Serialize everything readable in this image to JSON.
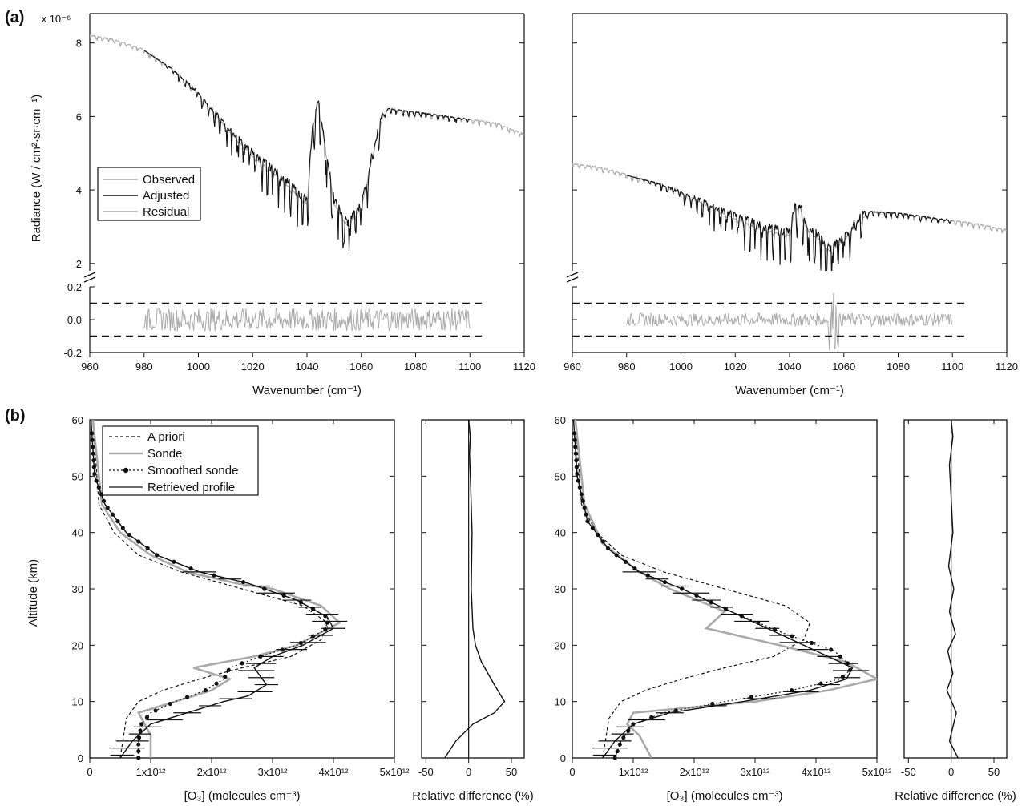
{
  "figure": {
    "panel_a_label": "(a)",
    "panel_b_label": "(b)"
  },
  "chart_data": [
    {
      "id": "a-left",
      "type": "line",
      "ylabel": "Radiance (W / cm²·sr·cm⁻¹)",
      "xlabel": "Wavenumber (cm⁻¹)",
      "y_multiplier": "x 10⁻⁶",
      "xlim": [
        960,
        1120
      ],
      "x_ticks": [
        "960",
        "980",
        "1000",
        "1020",
        "1040",
        "1060",
        "1080",
        "1100",
        "1120"
      ],
      "ylim_upper": [
        1.8,
        8.8
      ],
      "y_ticks_upper": [
        "2",
        "4",
        "6",
        "8"
      ],
      "ylim_lower": [
        -0.2,
        0.2
      ],
      "y_ticks_lower": [
        "-0.2",
        "0.0",
        "0.2"
      ],
      "threshold_lines": [
        0.1,
        -0.1
      ],
      "legend": [
        "Observed",
        "Adjusted",
        "Residual"
      ],
      "series": [
        {
          "name": "Observed",
          "color": "#aaaaaa",
          "x": [
            960,
            970,
            980,
            990,
            1000,
            1010,
            1020,
            1030,
            1040,
            1042,
            1044,
            1046,
            1050,
            1055,
            1060,
            1065,
            1068,
            1070,
            1080,
            1090,
            1100,
            1110,
            1120
          ],
          "y": [
            8.2,
            8.05,
            7.8,
            7.3,
            6.6,
            5.7,
            4.9,
            4.3,
            3.6,
            5.6,
            6.4,
            5.5,
            3.6,
            3.0,
            3.5,
            5.2,
            6.0,
            6.2,
            6.1,
            6.0,
            5.9,
            5.8,
            5.5
          ]
        },
        {
          "name": "Adjusted",
          "color": "#111111",
          "x": [
            980,
            990,
            1000,
            1010,
            1020,
            1030,
            1040,
            1042,
            1044,
            1046,
            1050,
            1055,
            1060,
            1065,
            1068,
            1070,
            1080,
            1090,
            1100
          ],
          "y": [
            7.8,
            7.3,
            6.6,
            5.7,
            4.9,
            4.3,
            3.6,
            5.6,
            6.4,
            5.5,
            3.6,
            3.0,
            3.5,
            5.2,
            6.0,
            6.2,
            6.1,
            6.0,
            5.9
          ]
        },
        {
          "name": "Residual",
          "color": "#aaaaaa",
          "x": [
            980,
            1100
          ],
          "y": [
            0.0,
            0.0
          ],
          "noise_amplitude": 0.07
        }
      ]
    },
    {
      "id": "a-right",
      "type": "line",
      "xlabel": "Wavenumber (cm⁻¹)",
      "xlim": [
        960,
        1120
      ],
      "x_ticks": [
        "960",
        "980",
        "1000",
        "1020",
        "1040",
        "1060",
        "1080",
        "1100",
        "1120"
      ],
      "ylim_upper": [
        1.8,
        8.8
      ],
      "ylim_lower": [
        -0.2,
        0.2
      ],
      "threshold_lines": [
        0.1,
        -0.1
      ],
      "series": [
        {
          "name": "Observed",
          "color": "#aaaaaa",
          "x": [
            960,
            970,
            980,
            990,
            1000,
            1010,
            1020,
            1030,
            1040,
            1042,
            1044,
            1046,
            1050,
            1055,
            1060,
            1065,
            1070,
            1080,
            1090,
            1100,
            1110,
            1120
          ],
          "y": [
            4.7,
            4.6,
            4.4,
            4.2,
            3.9,
            3.55,
            3.2,
            2.9,
            2.75,
            3.5,
            3.5,
            3.0,
            2.7,
            2.3,
            2.6,
            3.1,
            3.4,
            3.35,
            3.25,
            3.15,
            3.05,
            2.9
          ]
        },
        {
          "name": "Adjusted",
          "color": "#111111",
          "x": [
            980,
            990,
            1000,
            1010,
            1020,
            1030,
            1040,
            1042,
            1044,
            1046,
            1050,
            1055,
            1060,
            1065,
            1070,
            1080,
            1090,
            1100
          ],
          "y": [
            4.4,
            4.2,
            3.9,
            3.55,
            3.2,
            2.9,
            2.75,
            3.5,
            3.5,
            3.0,
            2.7,
            2.3,
            2.6,
            3.1,
            3.4,
            3.35,
            3.25,
            3.15
          ]
        },
        {
          "name": "Residual",
          "color": "#aaaaaa",
          "x": [
            980,
            1100
          ],
          "y": [
            0.0,
            0.0
          ],
          "noise_amplitude": 0.04,
          "spike_at": 1056
        }
      ]
    },
    {
      "id": "b-left-profile",
      "type": "line",
      "ylabel": "Altitude (km)",
      "xlabel": "[O₃] (molecules cm⁻³)",
      "xlim": [
        0,
        5
      ],
      "x_ticks": [
        "0",
        "1x10¹²",
        "2x10¹²",
        "3x10¹²",
        "4x10¹²",
        "5x10¹²"
      ],
      "ylim": [
        0,
        60
      ],
      "y_ticks": [
        "0",
        "10",
        "20",
        "30",
        "40",
        "50",
        "60"
      ],
      "legend": [
        "A priori",
        "Sonde",
        "Smoothed sonde",
        "Retrieved profile"
      ],
      "series": [
        {
          "name": "A priori",
          "style": "dashed",
          "color": "#111111",
          "x": [
            0.5,
            0.6,
            0.8,
            1.2,
            1.8,
            2.5,
            3.3,
            3.8,
            3.9,
            3.5,
            2.5,
            1.5,
            0.8,
            0.4,
            0.15,
            0.05
          ],
          "y": [
            0,
            7,
            10,
            12,
            14,
            16,
            18,
            21,
            24,
            27,
            30,
            33,
            36,
            40,
            45,
            60
          ]
        },
        {
          "name": "Sonde",
          "style": "solid",
          "color": "#aaaaaa",
          "x": [
            1.0,
            1.0,
            0.9,
            0.8,
            1.4,
            2.0,
            2.3,
            1.7,
            2.7,
            3.4,
            4.1,
            3.8,
            3.0,
            2.4,
            1.6,
            1.0,
            0.5,
            0.2,
            0.05
          ],
          "y": [
            0,
            4,
            6,
            8,
            10,
            12,
            14,
            16,
            18,
            20,
            24,
            27,
            30,
            31,
            33,
            36,
            40,
            45,
            60
          ]
        },
        {
          "name": "Smoothed sonde",
          "style": "dotted-markers",
          "color": "#111111",
          "x": [
            0.8,
            0.8,
            0.85,
            1.0,
            1.4,
            1.9,
            2.2,
            2.3,
            2.8,
            3.4,
            3.9,
            3.9,
            3.4,
            2.6,
            1.8,
            1.1,
            0.6,
            0.25,
            0.08,
            0.02
          ],
          "y": [
            0,
            3,
            6,
            8,
            10,
            12,
            14,
            16,
            18,
            20,
            23,
            25,
            28,
            31,
            33,
            36,
            40,
            45,
            50,
            60
          ]
        },
        {
          "name": "Retrieved profile",
          "style": "solid",
          "color": "#111111",
          "x": [
            0.5,
            0.7,
            1.0,
            1.6,
            2.2,
            2.6,
            2.9,
            2.7,
            3.0,
            3.5,
            4.0,
            3.9,
            3.4,
            2.6,
            1.8,
            1.1,
            0.6,
            0.25,
            0.08,
            0.02
          ],
          "y": [
            0,
            3,
            6,
            8,
            10,
            11,
            13,
            16,
            18,
            20,
            23,
            25,
            28,
            31,
            33,
            36,
            40,
            45,
            50,
            60
          ]
        }
      ]
    },
    {
      "id": "b-left-reldiff",
      "type": "line",
      "xlabel": "Relative difference (%)",
      "xlim": [
        -55,
        65
      ],
      "x_ticks": [
        "-50",
        "0",
        "50"
      ],
      "ylim": [
        0,
        60
      ],
      "series": [
        {
          "name": "Relative difference",
          "color": "#111111",
          "x": [
            -28,
            -15,
            5,
            30,
            42,
            30,
            15,
            8,
            5,
            3,
            4,
            2,
            1,
            2,
            0
          ],
          "y": [
            0,
            3,
            6,
            8,
            10,
            13,
            17,
            20,
            23,
            30,
            40,
            50,
            54,
            57,
            60
          ]
        }
      ]
    },
    {
      "id": "b-right-profile",
      "type": "line",
      "xlabel": "[O₃] (molecules cm⁻³)",
      "xlim": [
        0,
        5
      ],
      "x_ticks": [
        "0",
        "1x10¹²",
        "2x10¹²",
        "3x10¹²",
        "4x10¹²",
        "5x10¹²"
      ],
      "ylim": [
        0,
        60
      ],
      "y_ticks": [
        "0",
        "10",
        "20",
        "30",
        "40",
        "50",
        "60"
      ],
      "series": [
        {
          "name": "A priori",
          "style": "dashed",
          "color": "#111111",
          "x": [
            0.5,
            0.6,
            0.8,
            1.2,
            1.8,
            2.5,
            3.3,
            3.8,
            3.9,
            3.5,
            2.5,
            1.5,
            0.8,
            0.4,
            0.15,
            0.05
          ],
          "y": [
            0,
            7,
            10,
            12,
            14,
            16,
            18,
            21,
            24,
            27,
            30,
            33,
            36,
            40,
            45,
            60
          ]
        },
        {
          "name": "Sonde",
          "style": "solid",
          "color": "#aaaaaa",
          "x": [
            1.3,
            1.1,
            0.9,
            1.0,
            3.0,
            4.2,
            5.0,
            4.5,
            3.4,
            2.2,
            2.5,
            1.6,
            1.1,
            0.5,
            0.2,
            0.05
          ],
          "y": [
            0,
            4,
            6,
            8,
            10,
            12,
            14,
            17,
            20,
            23,
            26,
            30,
            33,
            38,
            45,
            60
          ]
        },
        {
          "name": "Smoothed sonde",
          "style": "dotted-markers",
          "color": "#111111",
          "x": [
            0.7,
            0.8,
            1.0,
            1.5,
            2.5,
            3.6,
            4.4,
            4.6,
            4.3,
            3.5,
            2.6,
            1.8,
            1.1,
            0.6,
            0.25,
            0.08,
            0.02
          ],
          "y": [
            0,
            3,
            6,
            8,
            10,
            12,
            14,
            16,
            19,
            22,
            26,
            30,
            33,
            37,
            42,
            50,
            60
          ]
        },
        {
          "name": "Retrieved profile",
          "style": "solid",
          "color": "#111111",
          "x": [
            0.5,
            0.7,
            1.0,
            1.6,
            2.8,
            3.9,
            4.5,
            4.6,
            4.0,
            3.4,
            2.6,
            1.8,
            1.1,
            0.6,
            0.25,
            0.08,
            0.02
          ],
          "y": [
            0,
            3,
            6,
            8,
            10,
            12,
            14,
            16,
            19,
            22,
            26,
            30,
            33,
            37,
            42,
            50,
            60
          ]
        }
      ]
    },
    {
      "id": "b-right-reldiff",
      "type": "line",
      "xlabel": "Relative difference (%)",
      "xlim": [
        -55,
        65
      ],
      "x_ticks": [
        "-50",
        "0",
        "50"
      ],
      "ylim": [
        0,
        60
      ],
      "series": [
        {
          "name": "Relative difference",
          "color": "#111111",
          "x": [
            8,
            -2,
            6,
            -5,
            2,
            -4,
            5,
            -2,
            3,
            -3,
            2,
            0,
            -2,
            2,
            0
          ],
          "y": [
            0,
            3,
            8,
            12,
            15,
            19,
            22,
            26,
            30,
            34,
            40,
            46,
            52,
            57,
            60
          ]
        }
      ]
    }
  ]
}
